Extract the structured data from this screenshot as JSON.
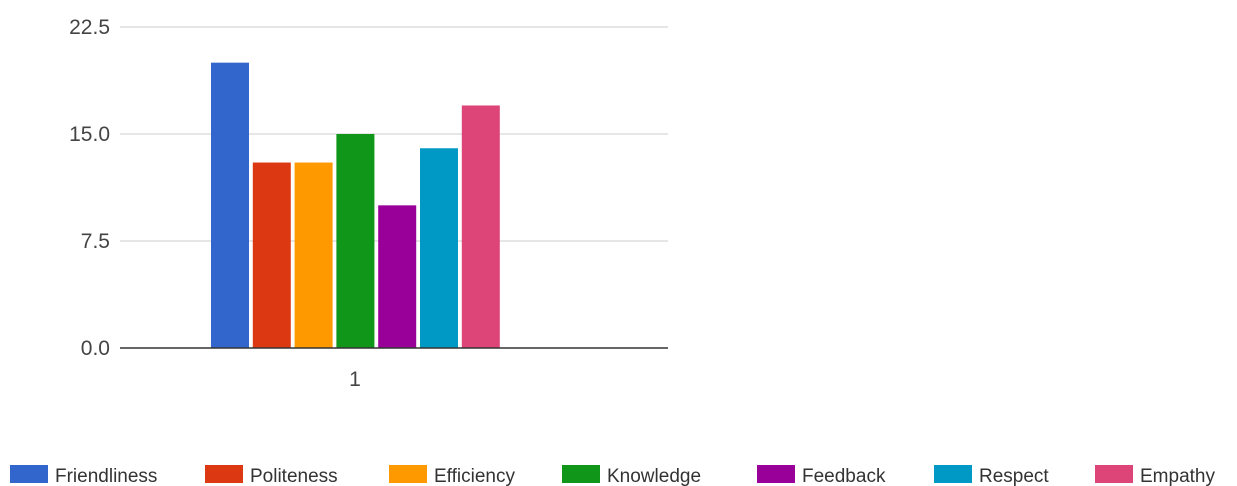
{
  "chart_data": {
    "type": "bar",
    "categories": [
      "1"
    ],
    "series": [
      {
        "name": "Friendliness",
        "values": [
          20
        ],
        "color": "#3366cc"
      },
      {
        "name": "Politeness",
        "values": [
          13
        ],
        "color": "#dc3912"
      },
      {
        "name": "Efficiency",
        "values": [
          13
        ],
        "color": "#ff9900"
      },
      {
        "name": "Knowledge",
        "values": [
          15
        ],
        "color": "#109618"
      },
      {
        "name": "Feedback",
        "values": [
          10
        ],
        "color": "#990099"
      },
      {
        "name": "Respect",
        "values": [
          14
        ],
        "color": "#0099c6"
      },
      {
        "name": "Empathy",
        "values": [
          17
        ],
        "color": "#dd4477"
      }
    ],
    "yticks": [
      "0.0",
      "7.5",
      "15.0",
      "22.5"
    ],
    "ytick_values": [
      0,
      7.5,
      15,
      22.5
    ],
    "ylim": [
      0,
      22.5
    ],
    "title": "",
    "xlabel": "",
    "ylabel": "",
    "grid": true,
    "legend_position": "bottom"
  }
}
